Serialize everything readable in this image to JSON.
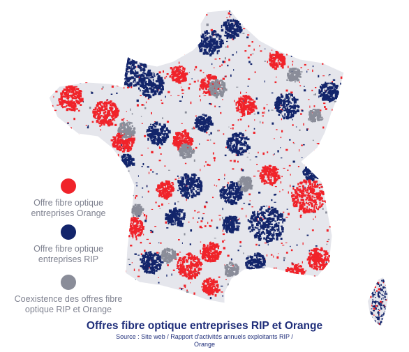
{
  "colors": {
    "orange": "#f0232a",
    "rip": "#13256b",
    "coexistence": "#8a8d99",
    "land": "#e5e6ec",
    "background": "#ffffff"
  },
  "legend": [
    {
      "color": "#f0232a",
      "line1": "Offre fibre optique",
      "line2": "entreprises Orange"
    },
    {
      "color": "#13256b",
      "line1": "Offre fibre optique",
      "line2": "entreprises RIP"
    },
    {
      "color": "#8a8d99",
      "line1": "Coexistence des offres fibre",
      "line2": "optique RIP et Orange"
    }
  ],
  "title": "Offres fibre optique entreprises RIP et Orange",
  "source": {
    "line1": "Source : Site web / Rapport d'activités annuels exploitants RIP /",
    "line2": "Orange"
  }
}
